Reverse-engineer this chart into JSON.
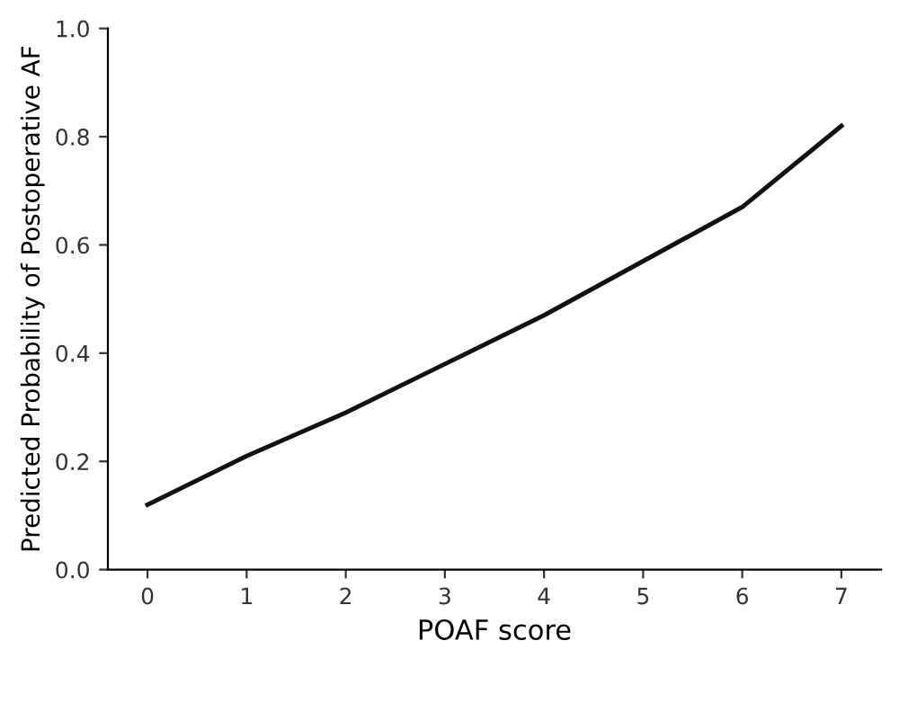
{
  "chart_data": {
    "type": "line",
    "xlabel": "POAF score",
    "ylabel": "Predicted Probability of Postoperative AF",
    "x": [
      0,
      1,
      2,
      3,
      4,
      5,
      6,
      7
    ],
    "series": [
      {
        "color": "#111111",
        "values": [
          0.12,
          0.21,
          0.29,
          0.38,
          0.47,
          0.57,
          0.67,
          0.82
        ]
      }
    ],
    "xlim": [
      -0.4,
      7.4
    ],
    "ylim": [
      0.0,
      1.0
    ],
    "xticks": [
      0,
      1,
      2,
      3,
      4,
      5,
      6,
      7
    ],
    "yticks": [
      {
        "value": 0.0,
        "label": "0.0"
      },
      {
        "value": 0.2,
        "label": "0.2"
      },
      {
        "value": 0.4,
        "label": "0.4"
      },
      {
        "value": 0.6,
        "label": "0.6"
      },
      {
        "value": 0.8,
        "label": "0.8"
      },
      {
        "value": 1.0,
        "label": "1.0"
      }
    ],
    "grid": false,
    "legend": false,
    "marker": "none",
    "line_style": "solid"
  }
}
